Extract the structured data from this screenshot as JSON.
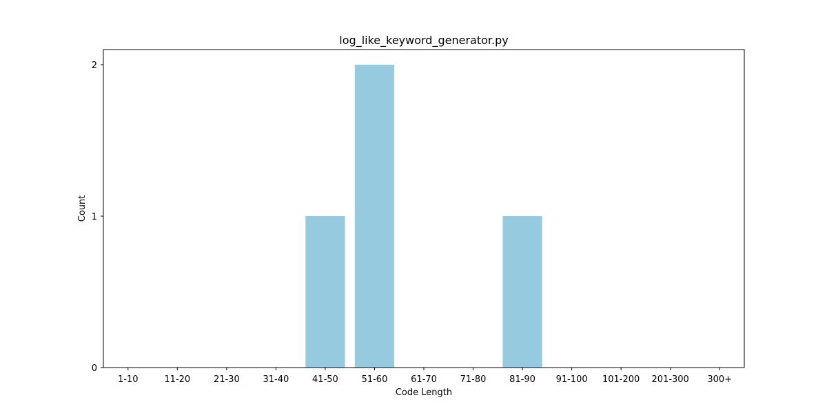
{
  "chart_data": {
    "type": "bar",
    "title": "log_like_keyword_generator.py",
    "xlabel": "Code Length",
    "ylabel": "Count",
    "categories": [
      "1-10",
      "11-20",
      "21-30",
      "31-40",
      "41-50",
      "51-60",
      "61-70",
      "71-80",
      "81-90",
      "91-100",
      "101-200",
      "201-300",
      "300+"
    ],
    "values": [
      0,
      0,
      0,
      0,
      1,
      2,
      0,
      0,
      1,
      0,
      0,
      0,
      0
    ],
    "ylim": [
      0,
      2.1
    ],
    "yticks": [
      0,
      1,
      2
    ],
    "bar_color": "#96cade",
    "grid": false,
    "legend": "none"
  }
}
